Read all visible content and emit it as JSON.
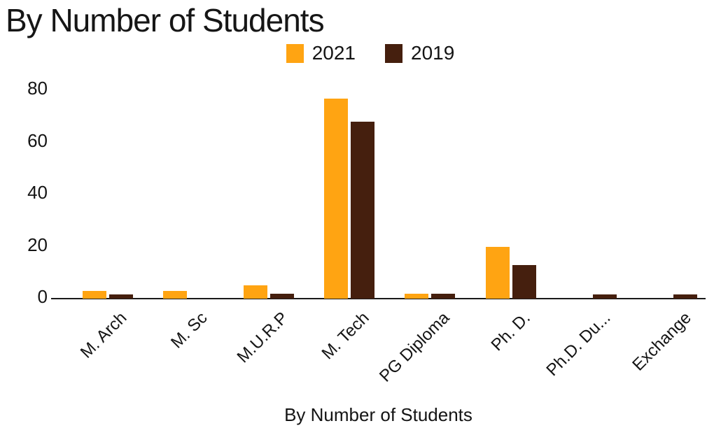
{
  "chart_data": {
    "type": "bar",
    "title": "By Number of Students",
    "xlabel": "By Number of Students",
    "ylabel": "",
    "categories": [
      "M. Arch",
      "M. Sc",
      "M.U.R.P",
      "M. Tech",
      "PG Diploma",
      "Ph. D.",
      "Ph.D. Du...",
      "Exchange"
    ],
    "series": [
      {
        "name": "2021",
        "color": "#FFA412",
        "values": [
          3,
          3,
          5,
          77,
          2,
          20,
          0,
          0
        ]
      },
      {
        "name": "2019",
        "color": "#451F0E",
        "values": [
          1.5,
          0,
          2,
          68,
          2,
          13,
          1.5,
          1.5
        ]
      }
    ],
    "yticks": [
      0,
      20,
      40,
      60,
      80
    ],
    "ylim": [
      0,
      80
    ],
    "legend_position": "top-center",
    "grid": false,
    "axis_color": "#1a1a1a",
    "text_color": "#141414"
  }
}
